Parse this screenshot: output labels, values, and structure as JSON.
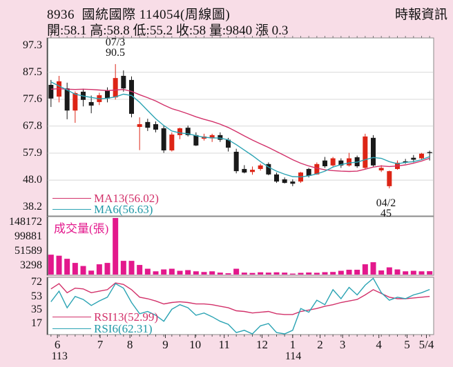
{
  "header": {
    "title": "8936  國統國際 114054(周線圖)",
    "source": "時報資訊",
    "quote_line": "開:58.1 高:58.8 低:55.2 收:58 量:9840 漲 0.3"
  },
  "legends": {
    "ma13": "MA13(56.02)",
    "ma6": "MA6(56.63)",
    "volume": "成交量(張)",
    "rsi13": "RSI13(52.99)",
    "rsi6": "RSI6(62.31)"
  },
  "annotations": {
    "peak_date": "07/3",
    "peak_value": "90.5",
    "trough_date": "04/2",
    "trough_value": "45"
  },
  "chart_data": {
    "type": "candlestick",
    "periodicity": "weekly",
    "title": "8936 國統國際 114054 周線圖",
    "panels": [
      "price",
      "volume",
      "rsi"
    ],
    "price_axis_labels": [
      "97.3",
      "87.5",
      "77.6",
      "67.8",
      "57.9",
      "48.0",
      "38.2"
    ],
    "volume_axis_labels": [
      "148172",
      "99881",
      "51589",
      "3298"
    ],
    "rsi_axis_labels": [
      "72",
      "53",
      "35",
      "17"
    ],
    "month_labels": [
      {
        "label": "6",
        "i": 0.8
      },
      {
        "label": "7",
        "i": 6.1
      },
      {
        "label": "8",
        "i": 9.8
      },
      {
        "label": "9",
        "i": 14.2
      },
      {
        "label": "10",
        "i": 17.9
      },
      {
        "label": "11",
        "i": 21.5
      },
      {
        "label": "12",
        "i": 26.2
      },
      {
        "label": "1",
        "i": 30.0
      },
      {
        "label": "2",
        "i": 33.4
      },
      {
        "label": "3",
        "i": 36.2
      },
      {
        "label": "4",
        "i": 40.7
      },
      {
        "label": "5",
        "i": 44.2
      },
      {
        "label": "5/4",
        "i": 46.6
      }
    ],
    "year_labels": [
      {
        "label": "113",
        "i": 1.0
      },
      {
        "label": "114",
        "i": 30.0
      }
    ],
    "current": {
      "open": 58.1,
      "high": 58.8,
      "low": 55.2,
      "close": 58,
      "volume": 9840,
      "change": 0.3
    },
    "peak": {
      "date": "07/3",
      "high": 90.5
    },
    "trough": {
      "date": "04/2",
      "low": 45
    },
    "ma13_value": 56.02,
    "ma6_value": 56.63,
    "rsi13_value": 52.99,
    "rsi6_value": 62.31,
    "candles": [
      [
        82.9,
        84.7,
        74.8,
        77.9
      ],
      [
        78.6,
        86.2,
        76.5,
        84.2
      ],
      [
        81.6,
        83.7,
        70.3,
        73.5
      ],
      [
        73.5,
        80.5,
        69.0,
        79.9
      ],
      [
        80.4,
        81.5,
        75.0,
        77.4
      ],
      [
        76.6,
        79.0,
        72.5,
        75.3
      ],
      [
        76.6,
        80.0,
        75.5,
        79.1
      ],
      [
        80.9,
        82.0,
        76.5,
        77.9
      ],
      [
        78.3,
        90.5,
        77.5,
        85.4
      ],
      [
        86.2,
        88.2,
        80.4,
        81.6
      ],
      [
        84.7,
        86.0,
        71.0,
        72.3
      ],
      [
        67.5,
        71.0,
        59.0,
        68.5
      ],
      [
        69.3,
        70.5,
        66.0,
        67.2
      ],
      [
        68.5,
        69.5,
        65.5,
        66.5
      ],
      [
        67.0,
        68.0,
        58.0,
        58.9
      ],
      [
        58.9,
        65.5,
        58.5,
        64.7
      ],
      [
        64.5,
        67.2,
        63.0,
        67.0
      ],
      [
        67.2,
        68.0,
        64.0,
        64.5
      ],
      [
        64.5,
        65.5,
        60.5,
        60.7
      ],
      [
        63.2,
        65.0,
        62.5,
        64.0
      ],
      [
        63.3,
        65.0,
        62.0,
        64.5
      ],
      [
        64.5,
        65.5,
        62.0,
        62.8
      ],
      [
        62.8,
        63.5,
        58.5,
        59.9
      ],
      [
        58.4,
        59.5,
        50.5,
        51.3
      ],
      [
        52.1,
        53.5,
        50.5,
        50.8
      ],
      [
        51.0,
        53.0,
        50.0,
        51.8
      ],
      [
        52.1,
        54.0,
        51.5,
        53.4
      ],
      [
        53.9,
        54.5,
        49.8,
        50.1
      ],
      [
        50.1,
        50.8,
        47.0,
        47.5
      ],
      [
        48.3,
        49.0,
        46.8,
        47.0
      ],
      [
        47.5,
        48.3,
        45.8,
        46.7
      ],
      [
        47.5,
        51.0,
        47.0,
        50.8
      ],
      [
        52.1,
        52.5,
        49.0,
        49.6
      ],
      [
        50.1,
        54.5,
        50.0,
        53.9
      ],
      [
        55.2,
        56.5,
        52.5,
        53.1
      ],
      [
        53.4,
        56.5,
        53.0,
        56.0
      ],
      [
        55.2,
        56.0,
        52.5,
        53.4
      ],
      [
        53.4,
        58.0,
        53.0,
        56.0
      ],
      [
        56.4,
        57.0,
        52.5,
        53.1
      ],
      [
        52.5,
        65.0,
        52.0,
        64.0
      ],
      [
        63.5,
        64.5,
        53.0,
        53.4
      ],
      [
        51.6,
        53.5,
        51.0,
        52.5
      ],
      [
        45.8,
        51.5,
        45.0,
        51.3
      ],
      [
        52.1,
        55.2,
        51.8,
        54.4
      ],
      [
        54.9,
        55.8,
        54.0,
        54.5
      ],
      [
        56.2,
        57.2,
        54.5,
        55.5
      ],
      [
        56.0,
        58.0,
        55.5,
        57.7
      ],
      [
        58.1,
        58.8,
        55.2,
        58.0
      ]
    ],
    "volume": [
      58000,
      55000,
      46000,
      34000,
      25000,
      11500,
      30000,
      34000,
      165000,
      40000,
      40000,
      28000,
      17000,
      9500,
      15000,
      17000,
      11000,
      13000,
      9500,
      7500,
      9500,
      5700,
      3800,
      17000,
      5700,
      4700,
      6600,
      5700,
      6600,
      5700,
      2850,
      5000,
      6000,
      5200,
      7000,
      7600,
      11000,
      14000,
      14000,
      30000,
      36000,
      12000,
      21000,
      15000,
      9500,
      11000,
      9500,
      9840
    ],
    "ma6": [
      84.0,
      82.5,
      81.0,
      79.5,
      78.8,
      78.3,
      77.8,
      78.0,
      78.5,
      79.5,
      79.0,
      76.5,
      73.5,
      70.5,
      68.0,
      66.0,
      65.3,
      65.0,
      64.3,
      63.7,
      63.5,
      63.4,
      62.8,
      61.0,
      59.0,
      57.0,
      54.8,
      52.8,
      51.3,
      50.2,
      49.3,
      49.2,
      49.6,
      50.3,
      51.3,
      52.8,
      53.7,
      54.3,
      54.6,
      55.5,
      56.3,
      56.0,
      54.8,
      54.0,
      54.5,
      54.8,
      55.5,
      56.63
    ],
    "ma13": [
      81.3,
      81.5,
      81.3,
      81.2,
      81.3,
      81.2,
      81.0,
      80.8,
      81.0,
      81.2,
      80.5,
      79.3,
      78.2,
      77.0,
      75.5,
      74.2,
      73.3,
      72.3,
      71.2,
      70.3,
      69.5,
      68.5,
      67.3,
      65.8,
      64.2,
      62.7,
      61.3,
      60.0,
      58.5,
      57.0,
      55.5,
      54.2,
      53.2,
      52.4,
      51.8,
      51.5,
      51.3,
      51.2,
      51.3,
      52.0,
      52.8,
      53.2,
      53.0,
      53.2,
      53.6,
      54.2,
      55.0,
      56.02
    ],
    "rsi6": [
      46,
      60,
      38,
      53,
      49,
      41,
      47,
      52,
      70,
      64,
      45,
      30,
      33,
      28,
      20,
      36,
      42,
      38,
      28,
      31,
      26,
      20,
      16,
      5,
      8,
      3,
      14,
      17,
      5,
      3,
      8,
      37,
      32,
      48,
      42,
      62,
      50,
      65,
      55,
      68,
      77,
      58,
      48,
      52,
      50,
      55,
      58,
      62.31
    ],
    "rsi13": [
      63,
      70,
      58,
      64,
      63,
      58,
      60,
      62,
      71,
      69,
      62,
      52,
      50,
      47,
      43,
      45,
      46,
      45,
      43,
      43,
      42,
      40,
      38,
      34,
      33,
      31,
      32,
      33,
      30,
      29,
      29,
      33,
      35,
      37,
      40,
      42,
      45,
      47,
      49,
      55,
      62,
      57,
      52,
      50,
      50,
      51,
      52,
      52.99
    ],
    "colors": {
      "up_candle": "#dd2516",
      "down_candle": "#1a1a1a",
      "ma6_line": "#2aa3b3",
      "ma13_line": "#d23069",
      "rsi6_line": "#2aa3b3",
      "rsi13_line": "#d23069",
      "volume_bar": "#e3188c",
      "background": "#f8dde7",
      "panel_bg": "#ffffff",
      "grid": "#d8d8d8"
    }
  }
}
